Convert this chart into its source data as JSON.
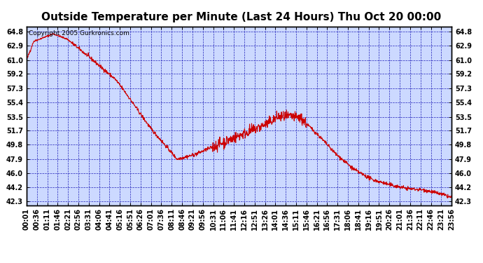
{
  "title": "Outside Temperature per Minute (Last 24 Hours) Thu Oct 20 00:00",
  "copyright": "Copyright 2005 Gurkronics.com",
  "yticks": [
    42.3,
    44.2,
    46.0,
    47.9,
    49.8,
    51.7,
    53.5,
    55.4,
    57.3,
    59.2,
    61.0,
    62.9,
    64.8
  ],
  "ylim": [
    41.8,
    65.5
  ],
  "xtick_labels": [
    "00:01",
    "00:36",
    "01:11",
    "01:46",
    "02:21",
    "02:56",
    "03:31",
    "04:06",
    "04:41",
    "05:16",
    "05:51",
    "06:26",
    "07:01",
    "07:36",
    "08:11",
    "08:46",
    "09:21",
    "09:56",
    "10:31",
    "11:06",
    "11:41",
    "12:16",
    "12:51",
    "13:26",
    "14:01",
    "14:36",
    "15:11",
    "15:46",
    "16:21",
    "16:56",
    "17:31",
    "18:06",
    "18:41",
    "19:16",
    "19:51",
    "20:26",
    "21:01",
    "21:36",
    "22:11",
    "22:46",
    "23:21",
    "23:56"
  ],
  "line_color": "#cc0000",
  "grid_color": "#2222bb",
  "background_color": "#ccd9ff",
  "title_fontsize": 11,
  "copyright_fontsize": 6.5,
  "tick_fontsize": 7,
  "keypoints_t": [
    0,
    0.4,
    1.5,
    2.3,
    3.5,
    5.0,
    5.5,
    7.0,
    8.5,
    9.5,
    10.5,
    11.5,
    12.5,
    13.5,
    14.2,
    15.0,
    15.5,
    16.5,
    17.5,
    18.5,
    19.5,
    20.5,
    21.5,
    22.5,
    23.5,
    24.0
  ],
  "keypoints_v": [
    61.0,
    63.5,
    64.5,
    63.8,
    61.5,
    58.5,
    57.0,
    52.0,
    47.9,
    48.5,
    49.5,
    50.5,
    51.5,
    52.5,
    53.5,
    53.5,
    53.3,
    51.0,
    48.5,
    46.5,
    45.2,
    44.5,
    44.0,
    43.8,
    43.2,
    42.8
  ]
}
